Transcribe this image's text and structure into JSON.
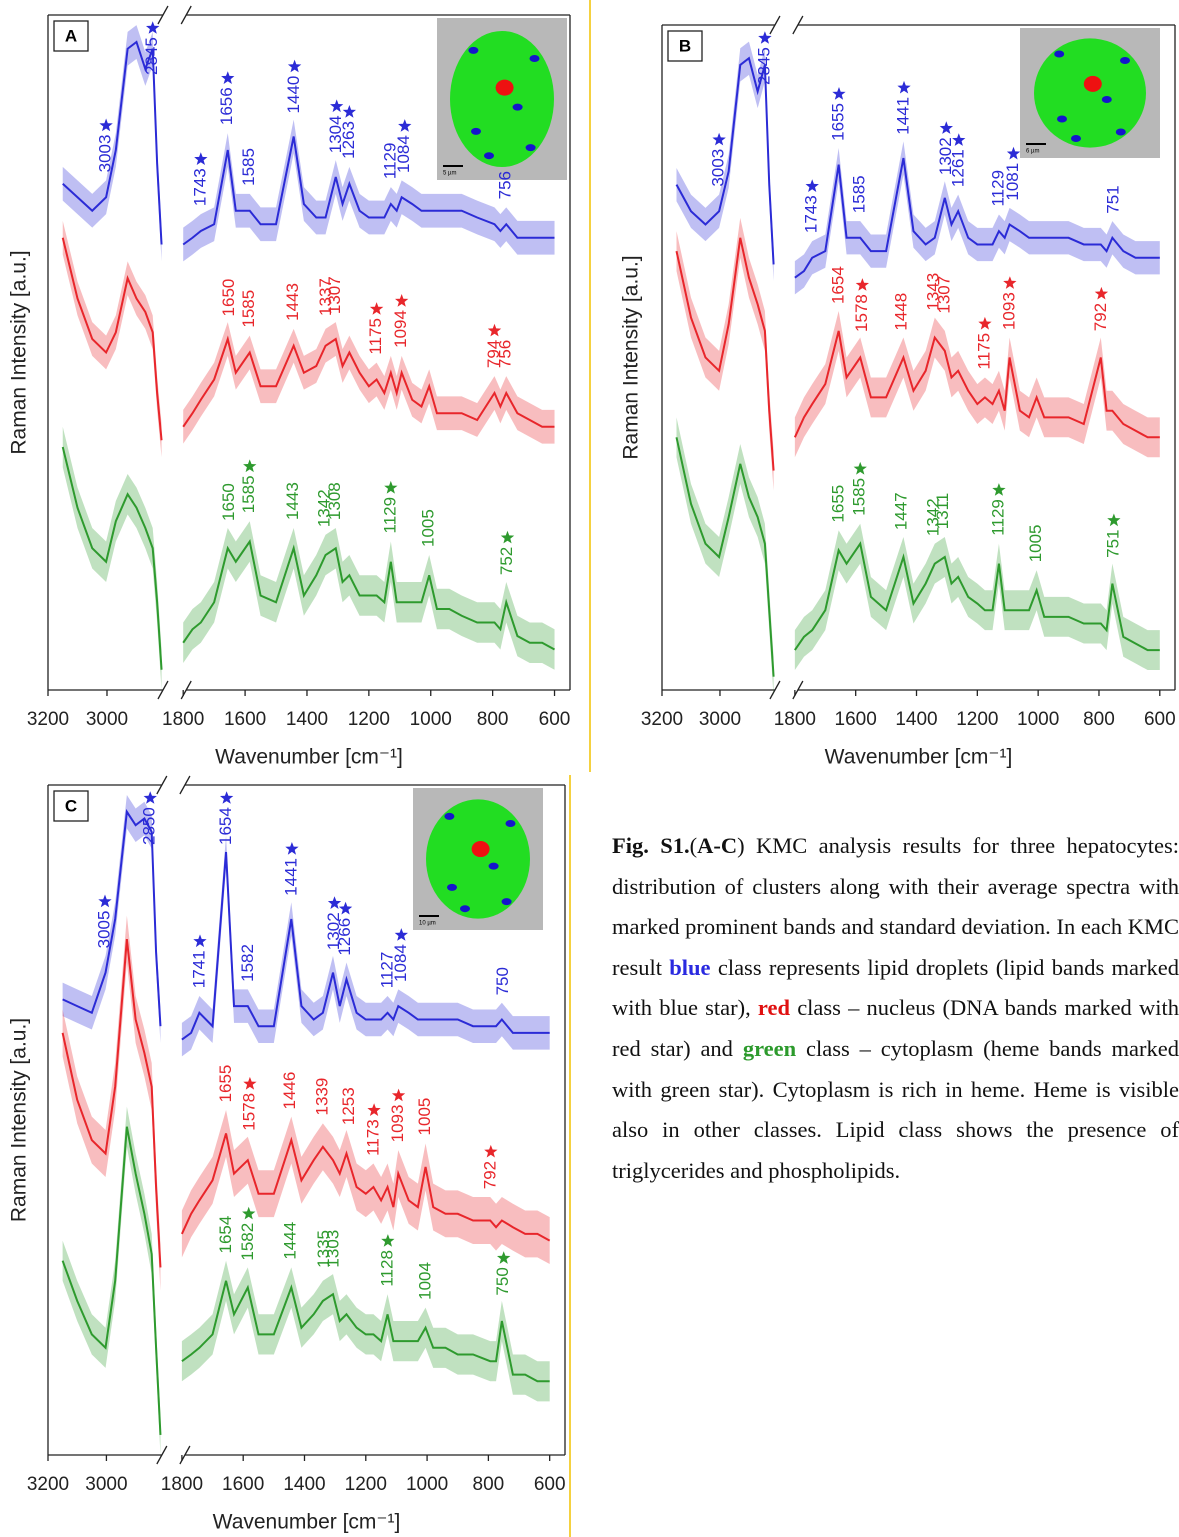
{
  "chart_data": [
    {
      "type": "line",
      "panel_label": "A",
      "ylabel": "Raman Intensity [a.u.]",
      "xlabel": "Wavenumber [cm⁻¹]",
      "inset_scale": "5 µm",
      "xlim": [
        3200,
        550
      ],
      "xbreak": [
        2800,
        1800
      ],
      "xticks": [
        3200,
        3000,
        1800,
        1600,
        1400,
        1200,
        1000,
        800,
        600
      ],
      "ylim": [
        0,
        100
      ],
      "x": [
        3150,
        3100,
        3050,
        3003,
        2970,
        2930,
        2900,
        2870,
        2845,
        2830,
        2815,
        1800,
        1770,
        1743,
        1700,
        1656,
        1630,
        1585,
        1550,
        1500,
        1443,
        1410,
        1370,
        1340,
        1307,
        1285,
        1263,
        1230,
        1200,
        1175,
        1150,
        1129,
        1110,
        1094,
        1060,
        1030,
        1005,
        980,
        940,
        900,
        850,
        794,
        775,
        756,
        720,
        680,
        640,
        600
      ],
      "series": [
        {
          "color": "#2b2bd6",
          "sd": 2.5,
          "values": [
            75,
            73,
            71,
            73,
            80,
            95,
            96,
            92,
            95,
            78,
            66,
            66,
            67,
            68,
            69,
            80,
            71,
            71,
            69,
            69,
            82,
            72,
            70,
            70,
            76,
            72,
            75,
            71,
            70,
            70,
            70,
            72,
            71,
            73,
            72,
            71,
            71,
            71,
            71,
            71,
            70,
            69,
            68,
            69,
            67,
            67,
            67,
            67
          ]
        },
        {
          "color": "#e8262b",
          "sd": 2.5,
          "values": [
            67,
            58,
            52,
            50,
            53,
            61,
            58,
            56,
            53,
            44,
            37,
            39,
            41,
            43,
            46,
            52,
            47,
            50,
            45,
            45,
            51,
            47,
            48,
            51,
            52,
            48,
            50,
            47,
            45,
            46,
            44,
            47,
            44,
            47,
            43,
            42,
            45,
            41,
            41,
            41,
            40,
            44,
            42,
            44,
            41,
            40,
            39,
            39
          ]
        },
        {
          "color": "#2e9a2e",
          "sd": 3,
          "values": [
            36,
            27,
            21,
            19,
            25,
            29,
            27,
            24,
            21,
            13,
            3,
            7,
            9,
            10,
            13,
            21,
            19,
            22,
            14,
            13,
            21,
            14,
            17,
            20,
            21,
            16,
            17,
            14,
            14,
            14,
            13,
            19,
            13,
            13,
            13,
            13,
            17,
            12,
            12,
            11,
            10,
            10,
            9,
            13,
            8,
            7,
            7,
            6
          ]
        }
      ],
      "annotations": [
        {
          "series": 0,
          "x": 3003,
          "star": true
        },
        {
          "series": 0,
          "x": 2845,
          "star": true
        },
        {
          "series": 0,
          "x": 1743,
          "star": true
        },
        {
          "series": 0,
          "x": 1656,
          "star": true
        },
        {
          "series": 0,
          "x": 1585,
          "star": false
        },
        {
          "series": 0,
          "x": 1440,
          "star": true
        },
        {
          "series": 0,
          "x": 1304,
          "star": true
        },
        {
          "series": 0,
          "x": 1263,
          "star": true
        },
        {
          "series": 0,
          "x": 1129,
          "star": false
        },
        {
          "series": 0,
          "x": 1084,
          "star": true
        },
        {
          "series": 0,
          "x": 756,
          "star": false
        },
        {
          "series": 1,
          "x": 1650,
          "star": false
        },
        {
          "series": 1,
          "x": 1585,
          "star": false
        },
        {
          "series": 1,
          "x": 1443,
          "star": false
        },
        {
          "series": 1,
          "x": 1337,
          "star": false
        },
        {
          "series": 1,
          "x": 1307,
          "star": false
        },
        {
          "series": 1,
          "x": 1175,
          "star": true
        },
        {
          "series": 1,
          "x": 1094,
          "star": true
        },
        {
          "series": 1,
          "x": 794,
          "star": true
        },
        {
          "series": 1,
          "x": 756,
          "star": false
        },
        {
          "series": 2,
          "x": 1650,
          "star": false
        },
        {
          "series": 2,
          "x": 1585,
          "star": true
        },
        {
          "series": 2,
          "x": 1443,
          "star": false
        },
        {
          "series": 2,
          "x": 1342,
          "star": false
        },
        {
          "series": 2,
          "x": 1308,
          "star": false
        },
        {
          "series": 2,
          "x": 1129,
          "star": true
        },
        {
          "series": 2,
          "x": 1005,
          "star": false
        },
        {
          "series": 2,
          "x": 752,
          "star": true
        }
      ]
    },
    {
      "type": "line",
      "panel_label": "B",
      "ylabel": "Raman Intensity [a.u.]",
      "xlabel": "Wavenumber [cm⁻¹]",
      "inset_scale": "6 µm",
      "xlim": [
        3200,
        550
      ],
      "xbreak": [
        2800,
        1800
      ],
      "xticks": [
        3200,
        3000,
        1800,
        1600,
        1400,
        1200,
        1000,
        800,
        600
      ],
      "ylim": [
        0,
        100
      ],
      "x": [
        3150,
        3100,
        3050,
        3003,
        2970,
        2930,
        2900,
        2870,
        2845,
        2830,
        2815,
        1800,
        1770,
        1743,
        1700,
        1656,
        1630,
        1585,
        1550,
        1500,
        1443,
        1410,
        1370,
        1340,
        1307,
        1285,
        1263,
        1230,
        1200,
        1175,
        1150,
        1129,
        1110,
        1094,
        1060,
        1030,
        1005,
        980,
        940,
        900,
        850,
        794,
        775,
        756,
        720,
        680,
        640,
        600
      ],
      "series": [
        {
          "color": "#2b2bd6",
          "sd": 2.5,
          "values": [
            76,
            72,
            70,
            72,
            78,
            94,
            95,
            90,
            94,
            76,
            64,
            62,
            63,
            65,
            66,
            79,
            68,
            68,
            66,
            66,
            80,
            69,
            67,
            68,
            74,
            70,
            72,
            68,
            67,
            67,
            67,
            69,
            68,
            70,
            69,
            68,
            68,
            68,
            68,
            68,
            67,
            67,
            66,
            68,
            66,
            65,
            65,
            65
          ]
        },
        {
          "color": "#e8262b",
          "sd": 3,
          "values": [
            66,
            56,
            50,
            48,
            55,
            68,
            62,
            58,
            54,
            42,
            33,
            38,
            41,
            43,
            46,
            54,
            47,
            50,
            44,
            44,
            50,
            45,
            48,
            53,
            51,
            47,
            48,
            45,
            43,
            44,
            43,
            45,
            42,
            50,
            42,
            41,
            44,
            41,
            41,
            41,
            40,
            50,
            42,
            42,
            40,
            39,
            38,
            38
          ]
        },
        {
          "color": "#2e9a2e",
          "sd": 3,
          "values": [
            38,
            28,
            22,
            20,
            26,
            34,
            29,
            26,
            22,
            12,
            2,
            6,
            8,
            9,
            12,
            21,
            19,
            22,
            14,
            12,
            20,
            13,
            16,
            19,
            20,
            16,
            17,
            14,
            13,
            12,
            12,
            19,
            12,
            12,
            12,
            12,
            15,
            11,
            11,
            11,
            10,
            10,
            9,
            16,
            8,
            7,
            6,
            6
          ]
        }
      ],
      "annotations": [
        {
          "series": 0,
          "x": 3003,
          "star": true
        },
        {
          "series": 0,
          "x": 2845,
          "star": true
        },
        {
          "series": 0,
          "x": 1743,
          "star": true
        },
        {
          "series": 0,
          "x": 1655,
          "star": true
        },
        {
          "series": 0,
          "x": 1585,
          "star": false
        },
        {
          "series": 0,
          "x": 1441,
          "star": true
        },
        {
          "series": 0,
          "x": 1302,
          "star": true
        },
        {
          "series": 0,
          "x": 1261,
          "star": true
        },
        {
          "series": 0,
          "x": 1129,
          "star": false
        },
        {
          "series": 0,
          "x": 1081,
          "star": true
        },
        {
          "series": 0,
          "x": 751,
          "star": false
        },
        {
          "series": 1,
          "x": 1654,
          "star": false
        },
        {
          "series": 1,
          "x": 1578,
          "star": true
        },
        {
          "series": 1,
          "x": 1448,
          "star": false
        },
        {
          "series": 1,
          "x": 1343,
          "star": false
        },
        {
          "series": 1,
          "x": 1307,
          "star": false
        },
        {
          "series": 1,
          "x": 1175,
          "star": true
        },
        {
          "series": 1,
          "x": 1093,
          "star": true
        },
        {
          "series": 1,
          "x": 792,
          "star": true
        },
        {
          "series": 2,
          "x": 1655,
          "star": false
        },
        {
          "series": 2,
          "x": 1585,
          "star": true
        },
        {
          "series": 2,
          "x": 1447,
          "star": false
        },
        {
          "series": 2,
          "x": 1342,
          "star": false
        },
        {
          "series": 2,
          "x": 1311,
          "star": false
        },
        {
          "series": 2,
          "x": 1129,
          "star": true
        },
        {
          "series": 2,
          "x": 1005,
          "star": false
        },
        {
          "series": 2,
          "x": 751,
          "star": true
        }
      ]
    },
    {
      "type": "line",
      "panel_label": "C",
      "ylabel": "Raman Intensity [a.u.]",
      "xlabel": "Wavenumber [cm⁻¹]",
      "inset_scale": "10 µm",
      "xlim": [
        3200,
        550
      ],
      "xbreak": [
        2800,
        1800
      ],
      "xticks": [
        3200,
        3000,
        1800,
        1600,
        1400,
        1200,
        1000,
        800,
        600
      ],
      "ylim": [
        0,
        100
      ],
      "x": [
        3150,
        3100,
        3050,
        3003,
        2970,
        2930,
        2900,
        2870,
        2845,
        2830,
        2815,
        1800,
        1770,
        1743,
        1700,
        1656,
        1630,
        1585,
        1550,
        1500,
        1443,
        1410,
        1370,
        1340,
        1307,
        1285,
        1263,
        1230,
        1200,
        1175,
        1150,
        1129,
        1110,
        1094,
        1060,
        1030,
        1005,
        980,
        940,
        900,
        850,
        794,
        775,
        756,
        720,
        680,
        640,
        600
      ],
      "series": [
        {
          "color": "#2b2bd6",
          "sd": 2.5,
          "values": [
            68,
            67,
            66,
            72,
            80,
            96,
            94,
            95,
            93,
            75,
            64,
            62,
            63,
            66,
            64,
            90,
            67,
            67,
            64,
            64,
            80,
            67,
            65,
            66,
            72,
            67,
            71,
            66,
            65,
            65,
            65,
            66,
            65,
            67,
            66,
            65,
            65,
            65,
            65,
            65,
            64,
            64,
            64,
            65,
            63,
            63,
            63,
            63
          ]
        },
        {
          "color": "#e8262b",
          "sd": 3.5,
          "values": [
            63,
            53,
            47,
            45,
            55,
            77,
            65,
            60,
            55,
            40,
            28,
            33,
            36,
            38,
            41,
            48,
            42,
            44,
            39,
            39,
            47,
            41,
            44,
            46,
            44,
            42,
            45,
            40,
            39,
            40,
            38,
            40,
            37,
            42,
            38,
            37,
            43,
            37,
            36,
            36,
            35,
            35,
            34,
            35,
            34,
            33,
            33,
            32
          ]
        },
        {
          "color": "#2e9a2e",
          "sd": 3,
          "values": [
            29,
            23,
            18,
            16,
            26,
            49,
            42,
            36,
            30,
            16,
            3,
            14,
            15,
            16,
            18,
            26,
            21,
            25,
            18,
            18,
            25,
            19,
            21,
            23,
            24,
            20,
            21,
            19,
            18,
            18,
            17,
            21,
            17,
            17,
            17,
            17,
            19,
            16,
            16,
            15,
            15,
            14,
            14,
            20,
            12,
            12,
            11,
            11
          ]
        }
      ],
      "annotations": [
        {
          "series": 0,
          "x": 3005,
          "star": true
        },
        {
          "series": 0,
          "x": 2850,
          "star": true
        },
        {
          "series": 0,
          "x": 1741,
          "star": true
        },
        {
          "series": 0,
          "x": 1654,
          "star": true
        },
        {
          "series": 0,
          "x": 1582,
          "star": false
        },
        {
          "series": 0,
          "x": 1441,
          "star": true
        },
        {
          "series": 0,
          "x": 1302,
          "star": true
        },
        {
          "series": 0,
          "x": 1266,
          "star": true
        },
        {
          "series": 0,
          "x": 1127,
          "star": false
        },
        {
          "series": 0,
          "x": 1084,
          "star": true
        },
        {
          "series": 0,
          "x": 750,
          "star": false
        },
        {
          "series": 1,
          "x": 1655,
          "star": false
        },
        {
          "series": 1,
          "x": 1578,
          "star": true
        },
        {
          "series": 1,
          "x": 1446,
          "star": false
        },
        {
          "series": 1,
          "x": 1339,
          "star": false
        },
        {
          "series": 1,
          "x": 1253,
          "star": false
        },
        {
          "series": 1,
          "x": 1173,
          "star": true
        },
        {
          "series": 1,
          "x": 1093,
          "star": true
        },
        {
          "series": 1,
          "x": 1005,
          "star": false
        },
        {
          "series": 1,
          "x": 792,
          "star": true
        },
        {
          "series": 2,
          "x": 1654,
          "star": false
        },
        {
          "series": 2,
          "x": 1582,
          "star": true
        },
        {
          "series": 2,
          "x": 1444,
          "star": false
        },
        {
          "series": 2,
          "x": 1335,
          "star": false
        },
        {
          "series": 2,
          "x": 1303,
          "star": false
        },
        {
          "series": 2,
          "x": 1128,
          "star": true
        },
        {
          "series": 2,
          "x": 1004,
          "star": false
        },
        {
          "series": 2,
          "x": 750,
          "star": true
        }
      ]
    }
  ],
  "caption": {
    "runs": [
      {
        "text": "Fig. S1.",
        "style": "bold"
      },
      {
        "text": "(",
        "style": "plain"
      },
      {
        "text": "A-C",
        "style": "bold"
      },
      {
        "text": ") KMC analysis results for three hepatocytes: distribution of clusters along with their average spectra with marked prominent bands and standard deviation. In each KMC result ",
        "style": "plain"
      },
      {
        "text": "blue",
        "style": "blue"
      },
      {
        "text": " class represents lipid droplets (lipid bands marked with blue star), ",
        "style": "plain"
      },
      {
        "text": "red",
        "style": "red"
      },
      {
        "text": " class – nucleus (DNA bands marked with red star) and ",
        "style": "plain"
      },
      {
        "text": "green",
        "style": "green"
      },
      {
        "text": " class – cytoplasm (heme bands marked with green star). Cytoplasm is rich in heme. Heme is visible also in other classes. Lipid class shows the presence of triglycerides and phospholipids.",
        "style": "plain"
      }
    ]
  }
}
